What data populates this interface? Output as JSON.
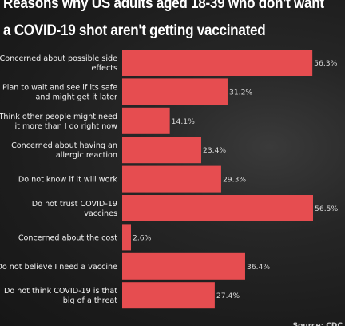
{
  "chart_data": {
    "type": "bar",
    "orientation": "horizontal",
    "title_lines": [
      "Reasons why US adults aged 18-39 who don't want",
      "a COVID-19 shot aren't getting vaccinated"
    ],
    "categories": [
      [
        "Concerned about possible side",
        "effects"
      ],
      [
        "Plan to wait and see if its safe",
        "and might get it later"
      ],
      [
        "Think other people might need",
        "it more than I do right now"
      ],
      [
        "Concerned about having an",
        "allergic reaction"
      ],
      [
        "Do not know if it will work"
      ],
      [
        "Do not trust COVID-19",
        "vaccines"
      ],
      [
        "Concerned about the cost"
      ],
      [
        "Do not believe I need a vaccine"
      ],
      [
        "Do not think COVID-19 is that",
        "big of a threat"
      ]
    ],
    "values": [
      56.3,
      31.2,
      14.1,
      23.4,
      29.3,
      56.5,
      2.6,
      36.4,
      27.4
    ],
    "value_labels": [
      "56.3%",
      "31.2%",
      "14.1%",
      "23.4%",
      "29.3%",
      "56.5%",
      "2.6%",
      "36.4%",
      "27.4%"
    ],
    "xlim": [
      0,
      56.5
    ],
    "xlabel": "",
    "ylabel": "",
    "grid": false,
    "legend": "none",
    "bar_color": "#e64d50",
    "source_text": "Source: CDC"
  }
}
